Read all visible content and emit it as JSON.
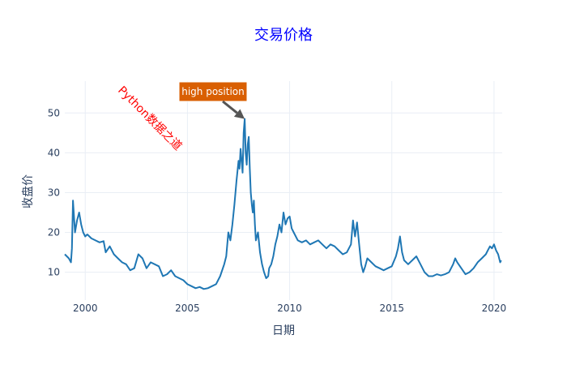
{
  "chart_data": {
    "type": "line",
    "title": "交易价格",
    "xlabel": "日期",
    "ylabel": "收盘价",
    "xlim": [
      1999.0,
      2020.4
    ],
    "ylim": [
      3,
      58
    ],
    "xticks": [
      2000,
      2005,
      2010,
      2015,
      2020
    ],
    "yticks": [
      10,
      20,
      30,
      40,
      50
    ],
    "grid": true,
    "legend": false,
    "colors": {
      "title": "#0000ff",
      "line": "#1f77b4",
      "grid": "#e9eef5",
      "axis_text": "#2a3f5f",
      "watermark": "#ff0000",
      "annotation_bg": "#d95f02",
      "annotation_text": "#ffffff",
      "arrow": "#555555"
    },
    "annotations": {
      "peak_label": "high position",
      "peak_point": [
        2007.8,
        48.5
      ],
      "watermark": "Python数据之道"
    },
    "series": [
      {
        "values_xy": [
          [
            1999.0,
            14.5
          ],
          [
            1999.1,
            14.0
          ],
          [
            1999.2,
            13.5
          ],
          [
            1999.3,
            12.5
          ],
          [
            1999.35,
            16.0
          ],
          [
            1999.4,
            28.0
          ],
          [
            1999.5,
            20.0
          ],
          [
            1999.6,
            23.0
          ],
          [
            1999.7,
            25.0
          ],
          [
            1999.8,
            22.0
          ],
          [
            1999.9,
            20.0
          ],
          [
            2000.0,
            19.0
          ],
          [
            2000.1,
            19.5
          ],
          [
            2000.3,
            18.5
          ],
          [
            2000.5,
            18.0
          ],
          [
            2000.7,
            17.5
          ],
          [
            2000.9,
            17.8
          ],
          [
            2001.0,
            15.0
          ],
          [
            2001.2,
            16.5
          ],
          [
            2001.4,
            14.5
          ],
          [
            2001.6,
            13.5
          ],
          [
            2001.8,
            12.5
          ],
          [
            2002.0,
            12.0
          ],
          [
            2002.2,
            10.5
          ],
          [
            2002.4,
            11.0
          ],
          [
            2002.6,
            14.5
          ],
          [
            2002.8,
            13.5
          ],
          [
            2003.0,
            11.0
          ],
          [
            2003.2,
            12.5
          ],
          [
            2003.4,
            12.0
          ],
          [
            2003.6,
            11.5
          ],
          [
            2003.8,
            9.0
          ],
          [
            2004.0,
            9.5
          ],
          [
            2004.2,
            10.5
          ],
          [
            2004.4,
            9.0
          ],
          [
            2004.6,
            8.5
          ],
          [
            2004.8,
            8.0
          ],
          [
            2005.0,
            7.0
          ],
          [
            2005.2,
            6.5
          ],
          [
            2005.4,
            6.0
          ],
          [
            2005.6,
            6.3
          ],
          [
            2005.8,
            5.8
          ],
          [
            2006.0,
            6.0
          ],
          [
            2006.2,
            6.5
          ],
          [
            2006.4,
            7.0
          ],
          [
            2006.6,
            9.0
          ],
          [
            2006.8,
            12.0
          ],
          [
            2006.9,
            14.0
          ],
          [
            2007.0,
            20.0
          ],
          [
            2007.1,
            18.0
          ],
          [
            2007.2,
            22.0
          ],
          [
            2007.3,
            27.0
          ],
          [
            2007.4,
            33.0
          ],
          [
            2007.5,
            38.0
          ],
          [
            2007.55,
            36.0
          ],
          [
            2007.6,
            41.0
          ],
          [
            2007.7,
            35.0
          ],
          [
            2007.75,
            45.0
          ],
          [
            2007.8,
            48.5
          ],
          [
            2007.85,
            40.0
          ],
          [
            2007.9,
            37.0
          ],
          [
            2007.95,
            42.0
          ],
          [
            2008.0,
            44.0
          ],
          [
            2008.05,
            36.0
          ],
          [
            2008.1,
            30.0
          ],
          [
            2008.15,
            27.0
          ],
          [
            2008.2,
            25.0
          ],
          [
            2008.25,
            28.0
          ],
          [
            2008.3,
            22.0
          ],
          [
            2008.35,
            18.0
          ],
          [
            2008.45,
            20.0
          ],
          [
            2008.55,
            15.0
          ],
          [
            2008.65,
            12.0
          ],
          [
            2008.75,
            10.0
          ],
          [
            2008.85,
            8.5
          ],
          [
            2008.95,
            9.0
          ],
          [
            2009.0,
            11.0
          ],
          [
            2009.1,
            12.0
          ],
          [
            2009.2,
            14.0
          ],
          [
            2009.3,
            17.0
          ],
          [
            2009.4,
            19.0
          ],
          [
            2009.5,
            22.0
          ],
          [
            2009.6,
            20.0
          ],
          [
            2009.7,
            25.0
          ],
          [
            2009.8,
            22.0
          ],
          [
            2009.9,
            23.5
          ],
          [
            2010.0,
            24.0
          ],
          [
            2010.1,
            21.0
          ],
          [
            2010.2,
            20.0
          ],
          [
            2010.4,
            18.0
          ],
          [
            2010.6,
            17.5
          ],
          [
            2010.8,
            18.0
          ],
          [
            2011.0,
            17.0
          ],
          [
            2011.2,
            17.5
          ],
          [
            2011.4,
            18.0
          ],
          [
            2011.6,
            17.0
          ],
          [
            2011.8,
            16.0
          ],
          [
            2012.0,
            17.0
          ],
          [
            2012.2,
            16.5
          ],
          [
            2012.4,
            15.5
          ],
          [
            2012.6,
            14.5
          ],
          [
            2012.8,
            15.0
          ],
          [
            2013.0,
            17.0
          ],
          [
            2013.1,
            23.0
          ],
          [
            2013.2,
            19.0
          ],
          [
            2013.3,
            22.5
          ],
          [
            2013.4,
            17.0
          ],
          [
            2013.5,
            12.0
          ],
          [
            2013.6,
            10.0
          ],
          [
            2013.7,
            11.5
          ],
          [
            2013.8,
            13.5
          ],
          [
            2014.0,
            12.5
          ],
          [
            2014.2,
            11.5
          ],
          [
            2014.4,
            11.0
          ],
          [
            2014.6,
            10.5
          ],
          [
            2014.8,
            11.0
          ],
          [
            2015.0,
            11.5
          ],
          [
            2015.2,
            14.0
          ],
          [
            2015.3,
            16.0
          ],
          [
            2015.4,
            19.0
          ],
          [
            2015.5,
            15.0
          ],
          [
            2015.6,
            13.0
          ],
          [
            2015.8,
            12.0
          ],
          [
            2016.0,
            13.0
          ],
          [
            2016.2,
            14.0
          ],
          [
            2016.4,
            12.0
          ],
          [
            2016.6,
            10.0
          ],
          [
            2016.8,
            9.0
          ],
          [
            2017.0,
            9.0
          ],
          [
            2017.2,
            9.5
          ],
          [
            2017.4,
            9.2
          ],
          [
            2017.6,
            9.5
          ],
          [
            2017.8,
            10.0
          ],
          [
            2017.9,
            11.0
          ],
          [
            2018.0,
            12.0
          ],
          [
            2018.1,
            13.5
          ],
          [
            2018.2,
            12.5
          ],
          [
            2018.4,
            11.0
          ],
          [
            2018.6,
            9.5
          ],
          [
            2018.8,
            10.0
          ],
          [
            2019.0,
            11.0
          ],
          [
            2019.2,
            12.5
          ],
          [
            2019.4,
            13.5
          ],
          [
            2019.6,
            14.5
          ],
          [
            2019.7,
            15.5
          ],
          [
            2019.8,
            16.5
          ],
          [
            2019.9,
            16.0
          ],
          [
            2020.0,
            17.0
          ],
          [
            2020.1,
            15.5
          ],
          [
            2020.2,
            14.5
          ],
          [
            2020.3,
            12.5
          ],
          [
            2020.35,
            13.0
          ]
        ]
      }
    ]
  }
}
